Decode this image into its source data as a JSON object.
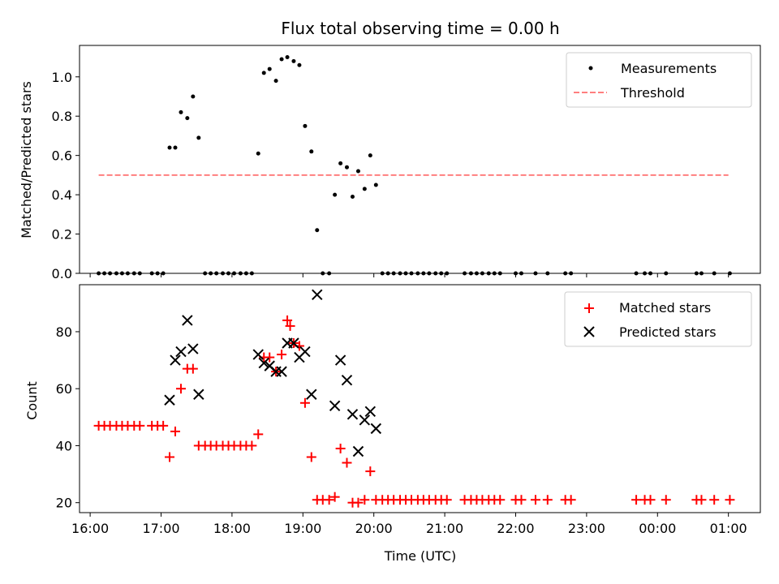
{
  "chart_data": [
    {
      "type": "scatter",
      "title": "Flux total observing time = 0.00 h",
      "xlabel": "",
      "ylabel": "Matched/Predicted stars",
      "xlim": [
        15.85,
        25.45
      ],
      "ylim": [
        0.0,
        1.16
      ],
      "x_ticks": [
        16,
        17,
        18,
        19,
        20,
        21,
        22,
        23,
        24,
        25
      ],
      "y_ticks": [
        0.0,
        0.2,
        0.4,
        0.6,
        0.8,
        1.0
      ],
      "y_tick_labels": [
        "0.0",
        "0.2",
        "0.4",
        "0.6",
        "0.8",
        "1.0"
      ],
      "legend": [
        "Measurements",
        "Threshold"
      ],
      "threshold": {
        "value": 0.5,
        "x_start": 16.12,
        "x_end": 25.0,
        "color": "#ff7f7f"
      },
      "series": [
        {
          "name": "Measurements",
          "color": "#000000",
          "x": [
            16.12,
            16.2,
            16.28,
            16.37,
            16.45,
            16.53,
            16.62,
            16.7,
            16.87,
            16.95,
            17.03,
            17.12,
            17.2,
            17.28,
            17.37,
            17.45,
            17.53,
            17.62,
            17.7,
            17.78,
            17.87,
            17.95,
            18.03,
            18.12,
            18.2,
            18.28,
            18.37,
            18.45,
            18.53,
            18.62,
            18.7,
            18.78,
            18.87,
            18.95,
            19.03,
            19.12,
            19.2,
            19.28,
            19.37,
            19.45,
            19.53,
            19.62,
            19.7,
            19.78,
            19.87,
            19.95,
            20.03,
            20.12,
            20.2,
            20.28,
            20.37,
            20.45,
            20.53,
            20.62,
            20.7,
            20.78,
            20.87,
            20.95,
            21.03,
            21.28,
            21.37,
            21.45,
            21.53,
            21.62,
            21.7,
            21.78,
            22.0,
            22.08,
            22.28,
            22.45,
            22.7,
            22.78,
            23.7,
            23.82,
            23.9,
            24.12,
            24.55,
            24.62,
            24.8,
            25.02
          ],
          "y": [
            0,
            0,
            0,
            0,
            0,
            0,
            0,
            0,
            0,
            0,
            0,
            0.64,
            0.64,
            0.82,
            0.79,
            0.9,
            0.69,
            0,
            0,
            0,
            0,
            0,
            0,
            0,
            0,
            0,
            0.61,
            1.02,
            1.04,
            0.98,
            1.09,
            1.1,
            1.08,
            1.06,
            0.75,
            0.62,
            0.22,
            0,
            0,
            0.4,
            0.56,
            0.54,
            0.39,
            0.52,
            0.43,
            0.6,
            0.45,
            0,
            0,
            0,
            0,
            0,
            0,
            0,
            0,
            0,
            0,
            0,
            0,
            0,
            0,
            0,
            0,
            0,
            0,
            0,
            0,
            0,
            0,
            0,
            0,
            0,
            0,
            0,
            0,
            0,
            0,
            0,
            0,
            0
          ]
        }
      ]
    },
    {
      "type": "scatter",
      "title": "",
      "xlabel": "Time (UTC)",
      "ylabel": "Count",
      "xlim": [
        15.85,
        25.45
      ],
      "ylim": [
        16.5,
        96.5
      ],
      "x_ticks": [
        16,
        17,
        18,
        19,
        20,
        21,
        22,
        23,
        24,
        25
      ],
      "x_tick_labels": [
        "16:00",
        "17:00",
        "18:00",
        "19:00",
        "20:00",
        "21:00",
        "22:00",
        "23:00",
        "00:00",
        "01:00"
      ],
      "y_ticks": [
        20,
        40,
        60,
        80
      ],
      "y_tick_labels": [
        "20",
        "40",
        "60",
        "80"
      ],
      "legend": [
        "Matched stars",
        "Predicted stars"
      ],
      "series": [
        {
          "name": "Matched stars",
          "color": "#ff0000",
          "marker": "plus",
          "x": [
            16.12,
            16.2,
            16.28,
            16.37,
            16.45,
            16.53,
            16.62,
            16.7,
            16.87,
            16.95,
            17.03,
            17.12,
            17.2,
            17.28,
            17.37,
            17.45,
            17.53,
            17.62,
            17.7,
            17.78,
            17.87,
            17.95,
            18.03,
            18.12,
            18.2,
            18.28,
            18.37,
            18.45,
            18.53,
            18.62,
            18.7,
            18.78,
            18.82,
            18.87,
            18.95,
            19.03,
            19.12,
            19.2,
            19.28,
            19.37,
            19.45,
            19.53,
            19.62,
            19.7,
            19.78,
            19.87,
            19.95,
            20.03,
            20.12,
            20.2,
            20.28,
            20.37,
            20.45,
            20.53,
            20.62,
            20.7,
            20.78,
            20.87,
            20.95,
            21.03,
            21.28,
            21.37,
            21.45,
            21.53,
            21.62,
            21.7,
            21.78,
            22.0,
            22.08,
            22.28,
            22.45,
            22.7,
            22.78,
            23.7,
            23.82,
            23.9,
            24.12,
            24.55,
            24.62,
            24.8,
            25.02
          ],
          "y": [
            47,
            47,
            47,
            47,
            47,
            47,
            47,
            47,
            47,
            47,
            47,
            36,
            45,
            60,
            67,
            67,
            40,
            40,
            40,
            40,
            40,
            40,
            40,
            40,
            40,
            40,
            44,
            71,
            71,
            66,
            72,
            84,
            82,
            76,
            75,
            55,
            36,
            21,
            21,
            21,
            22,
            39,
            34,
            20,
            20,
            21,
            31,
            21,
            21,
            21,
            21,
            21,
            21,
            21,
            21,
            21,
            21,
            21,
            21,
            21,
            21,
            21,
            21,
            21,
            21,
            21,
            21,
            21,
            21,
            21,
            21,
            21,
            21,
            21,
            21,
            21,
            21,
            21,
            21,
            21,
            21
          ]
        },
        {
          "name": "Predicted stars",
          "color": "#000000",
          "marker": "x",
          "x": [
            17.12,
            17.2,
            17.28,
            17.37,
            17.45,
            17.53,
            18.37,
            18.45,
            18.53,
            18.62,
            18.7,
            18.78,
            18.87,
            18.95,
            19.03,
            19.12,
            19.2,
            19.45,
            19.53,
            19.62,
            19.7,
            19.78,
            19.87,
            19.95,
            20.03
          ],
          "y": [
            56,
            70,
            73,
            84,
            74,
            58,
            72,
            69,
            68,
            66,
            66,
            76,
            76,
            71,
            73,
            58,
            93,
            54,
            70,
            63,
            51,
            38,
            49,
            52,
            46
          ]
        }
      ]
    }
  ]
}
